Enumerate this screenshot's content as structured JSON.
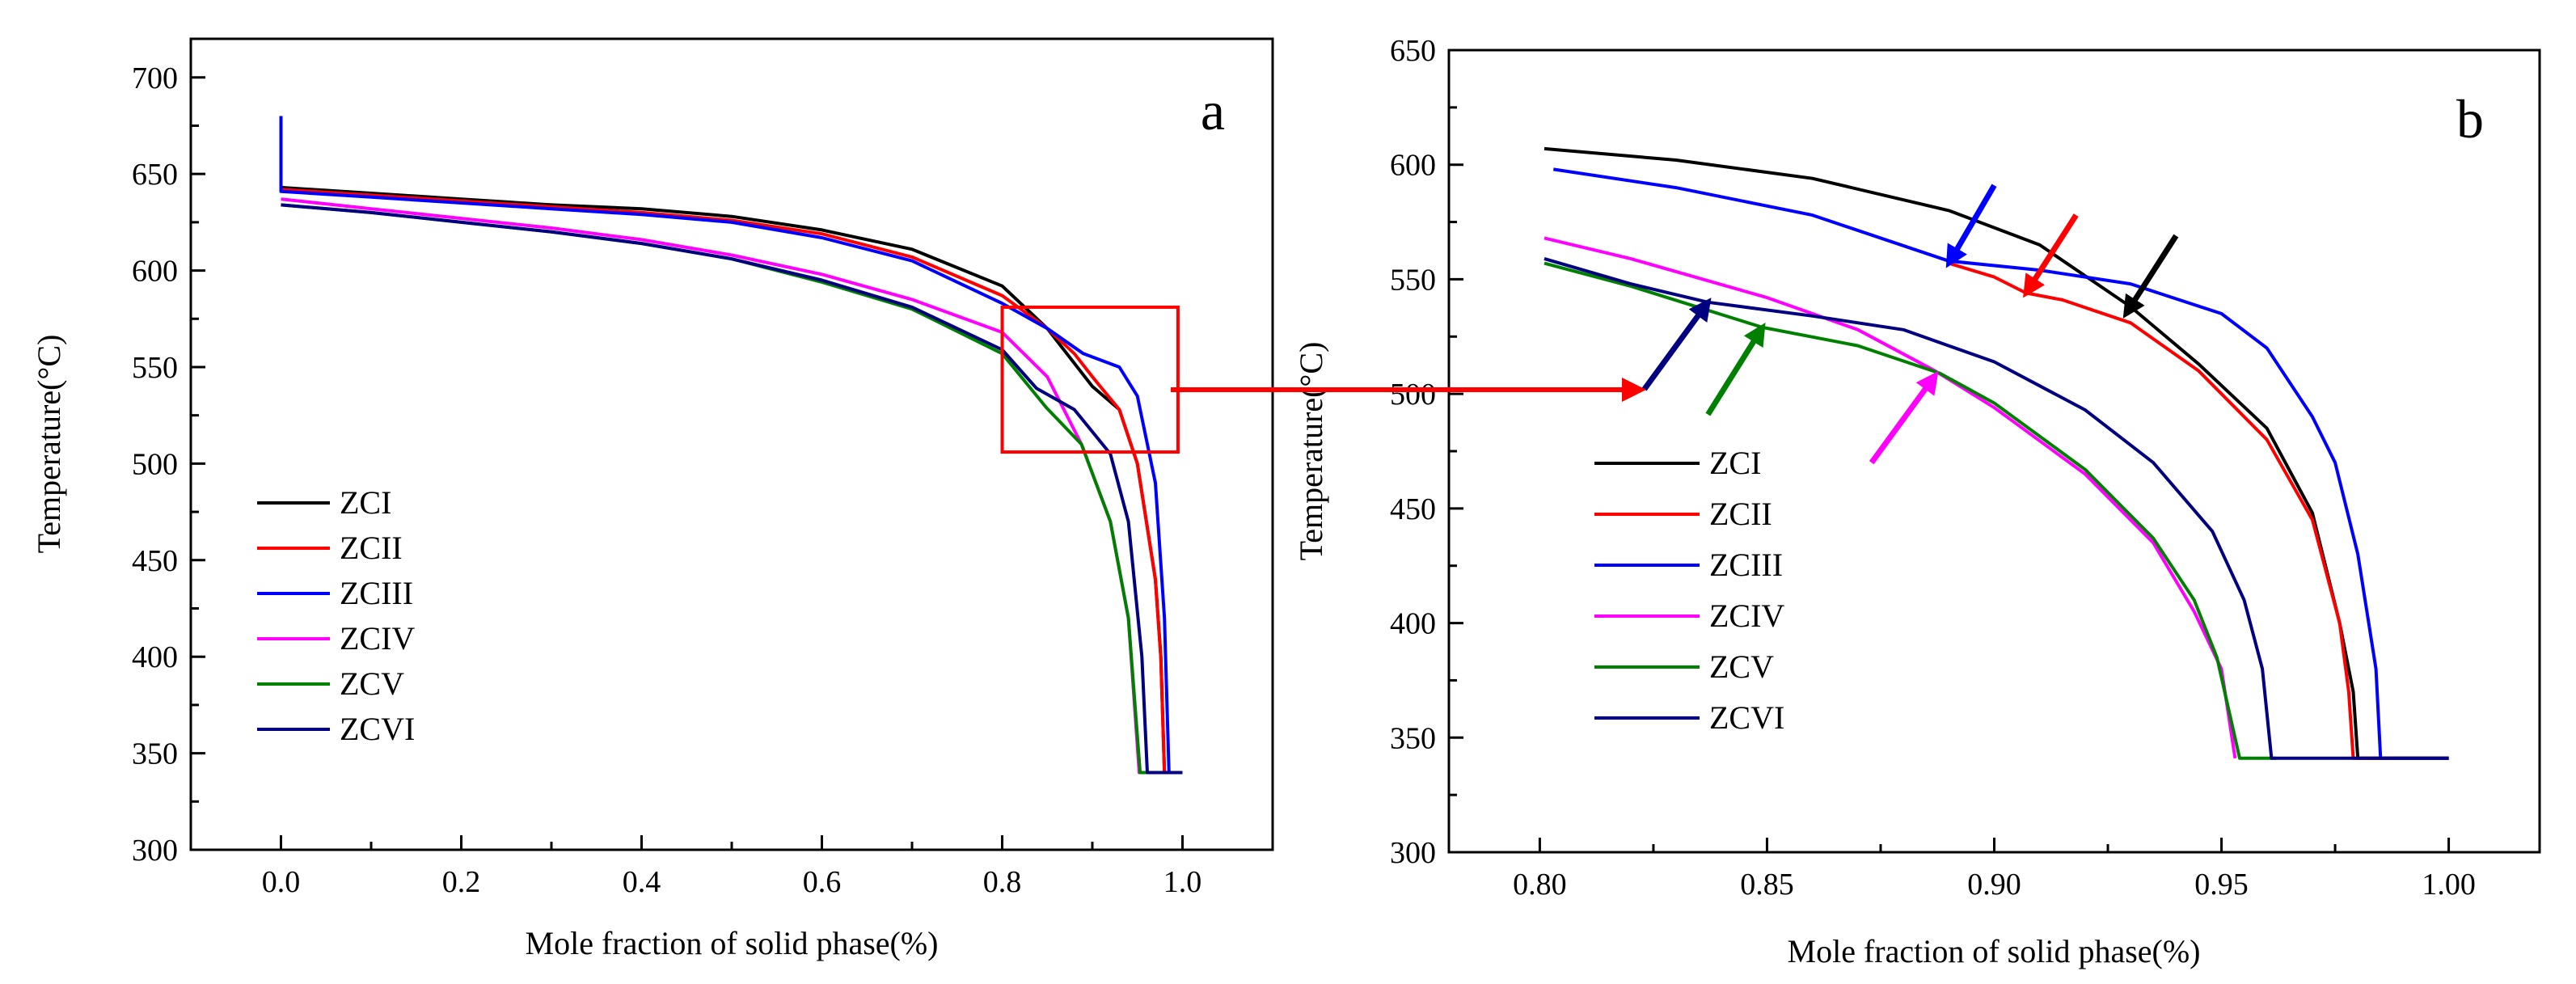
{
  "chart_data": [
    {
      "type": "line",
      "panel_label": "a",
      "xlabel": "Mole fraction of solid phase(%)",
      "ylabel": "Temperature(°C)",
      "xlim": [
        -0.1,
        1.1
      ],
      "ylim": [
        300,
        720
      ],
      "xticks": [
        0.0,
        0.2,
        0.4,
        0.6,
        0.8,
        1.0
      ],
      "xtick_labels": [
        "0.0",
        "0.2",
        "0.4",
        "0.6",
        "0.8",
        "1.0"
      ],
      "yticks": [
        300,
        350,
        400,
        450,
        500,
        550,
        600,
        650,
        700
      ],
      "ytick_labels": [
        "300",
        "350",
        "400",
        "450",
        "500",
        "550",
        "600",
        "650",
        "700"
      ],
      "grid": false,
      "legend_position": "bottom-left",
      "zoom_box": {
        "x": [
          0.8,
          0.995
        ],
        "y": [
          506,
          581
        ],
        "color": "#ff0000"
      },
      "series": [
        {
          "name": "ZCI",
          "color": "#000000",
          "points": [
            [
              0,
              643
            ],
            [
              0.1,
              640
            ],
            [
              0.2,
              637
            ],
            [
              0.3,
              634
            ],
            [
              0.4,
              632
            ],
            [
              0.5,
              628
            ],
            [
              0.6,
              621
            ],
            [
              0.7,
              611
            ],
            [
              0.8,
              592
            ],
            [
              0.85,
              570
            ],
            [
              0.9,
              540
            ],
            [
              0.93,
              528
            ],
            [
              0.95,
              500
            ],
            [
              0.97,
              440
            ],
            [
              0.976,
              400
            ],
            [
              0.98,
              340
            ],
            [
              1.0,
              340
            ]
          ]
        },
        {
          "name": "ZCII",
          "color": "#ff0000",
          "points": [
            [
              0,
              642
            ],
            [
              0.1,
              639
            ],
            [
              0.2,
              636
            ],
            [
              0.3,
              633
            ],
            [
              0.4,
              630
            ],
            [
              0.5,
              626
            ],
            [
              0.6,
              619
            ],
            [
              0.7,
              607
            ],
            [
              0.8,
              587
            ],
            [
              0.85,
              570
            ],
            [
              0.88,
              557
            ],
            [
              0.9,
              545
            ],
            [
              0.907,
              541
            ],
            [
              0.93,
              528
            ],
            [
              0.95,
              500
            ],
            [
              0.97,
              440
            ],
            [
              0.976,
              400
            ],
            [
              0.98,
              340
            ],
            [
              1.0,
              340
            ]
          ]
        },
        {
          "name": "ZCIII",
          "color": "#0000ff",
          "points": [
            [
              0,
              680
            ],
            [
              0,
              641
            ],
            [
              0.1,
              638
            ],
            [
              0.2,
              635
            ],
            [
              0.3,
              632
            ],
            [
              0.4,
              629
            ],
            [
              0.5,
              625
            ],
            [
              0.6,
              617
            ],
            [
              0.7,
              605
            ],
            [
              0.8,
              583
            ],
            [
              0.85,
              570
            ],
            [
              0.89,
              557
            ],
            [
              0.93,
              550
            ],
            [
              0.95,
              535
            ],
            [
              0.97,
              490
            ],
            [
              0.98,
              420
            ],
            [
              0.985,
              340
            ],
            [
              1.0,
              340
            ]
          ]
        },
        {
          "name": "ZCIV",
          "color": "#ff00ff",
          "points": [
            [
              0,
              637
            ],
            [
              0.1,
              632
            ],
            [
              0.2,
              627
            ],
            [
              0.3,
              622
            ],
            [
              0.4,
              616
            ],
            [
              0.5,
              608
            ],
            [
              0.6,
              598
            ],
            [
              0.7,
              585
            ],
            [
              0.8,
              568
            ],
            [
              0.85,
              545
            ],
            [
              0.888,
              510
            ],
            [
              0.92,
              470
            ],
            [
              0.94,
              420
            ],
            [
              0.952,
              340
            ],
            [
              0.96,
              340
            ]
          ]
        },
        {
          "name": "ZCV",
          "color": "#008000",
          "points": [
            [
              0,
              634
            ],
            [
              0.1,
              630
            ],
            [
              0.2,
              625
            ],
            [
              0.3,
              620
            ],
            [
              0.4,
              614
            ],
            [
              0.5,
              606
            ],
            [
              0.6,
              594
            ],
            [
              0.7,
              580
            ],
            [
              0.8,
              557
            ],
            [
              0.849,
              529
            ],
            [
              0.888,
              510
            ],
            [
              0.92,
              470
            ],
            [
              0.94,
              420
            ],
            [
              0.953,
              340
            ],
            [
              0.96,
              340
            ]
          ]
        },
        {
          "name": "ZCVI",
          "color": "#000080",
          "points": [
            [
              0,
              634
            ],
            [
              0.1,
              630
            ],
            [
              0.2,
              625
            ],
            [
              0.3,
              620
            ],
            [
              0.4,
              614
            ],
            [
              0.5,
              606
            ],
            [
              0.6,
              595
            ],
            [
              0.7,
              581
            ],
            [
              0.8,
              559
            ],
            [
              0.838,
              539
            ],
            [
              0.88,
              528
            ],
            [
              0.92,
              505
            ],
            [
              0.94,
              470
            ],
            [
              0.955,
              400
            ],
            [
              0.961,
              340
            ],
            [
              1.0,
              340
            ]
          ]
        }
      ]
    },
    {
      "type": "line",
      "panel_label": "b",
      "xlabel": "Mole fraction of solid phase(%)",
      "ylabel": "Temperature(°C)",
      "xlim": [
        0.78,
        1.02
      ],
      "ylim": [
        300,
        650
      ],
      "xticks": [
        0.8,
        0.85,
        0.9,
        0.95,
        1.0
      ],
      "xtick_labels": [
        "0.80",
        "0.85",
        "0.90",
        "0.95",
        "1.00"
      ],
      "yticks": [
        300,
        350,
        400,
        450,
        500,
        550,
        600,
        650
      ],
      "ytick_labels": [
        "300",
        "350",
        "400",
        "450",
        "500",
        "550",
        "600",
        "650"
      ],
      "grid": false,
      "legend_position": "middle-left",
      "arrows": [
        {
          "color": "#0000ff",
          "from": [
            0.9,
            591
          ],
          "to": [
            0.89,
            557
          ]
        },
        {
          "color": "#ff0000",
          "from": [
            0.918,
            578
          ],
          "to": [
            0.907,
            544
          ]
        },
        {
          "color": "#000000",
          "from": [
            0.94,
            569
          ],
          "to": [
            0.929,
            535
          ]
        },
        {
          "color": "#ff00ff",
          "from": [
            0.873,
            470
          ],
          "to": [
            0.887,
            508
          ]
        },
        {
          "color": "#008000",
          "from": [
            0.837,
            491
          ],
          "to": [
            0.849,
            529
          ]
        },
        {
          "color": "#000080",
          "from": [
            0.823,
            502
          ],
          "to": [
            0.837,
            540
          ]
        }
      ],
      "series": [
        {
          "name": "ZCI",
          "color": "#000000",
          "points": [
            [
              0.801,
              607
            ],
            [
              0.83,
              602
            ],
            [
              0.86,
              594
            ],
            [
              0.89,
              580
            ],
            [
              0.91,
              565
            ],
            [
              0.93,
              538
            ],
            [
              0.945,
              513
            ],
            [
              0.96,
              485
            ],
            [
              0.97,
              448
            ],
            [
              0.976,
              400
            ],
            [
              0.979,
              370
            ],
            [
              0.98,
              341
            ],
            [
              1.0,
              341
            ]
          ]
        },
        {
          "name": "ZCII",
          "color": "#ff0000",
          "points": [
            [
              0.89,
              557
            ],
            [
              0.9,
              551
            ],
            [
              0.907,
              544
            ],
            [
              0.915,
              541
            ],
            [
              0.93,
              531
            ],
            [
              0.945,
              510
            ],
            [
              0.96,
              480
            ],
            [
              0.97,
              445
            ],
            [
              0.976,
              400
            ],
            [
              0.978,
              370
            ],
            [
              0.979,
              341
            ],
            [
              1.0,
              341
            ]
          ]
        },
        {
          "name": "ZCIII",
          "color": "#0000ff",
          "points": [
            [
              0.803,
              598
            ],
            [
              0.83,
              590
            ],
            [
              0.86,
              578
            ],
            [
              0.89,
              558
            ],
            [
              0.91,
              554
            ],
            [
              0.93,
              548
            ],
            [
              0.95,
              535
            ],
            [
              0.96,
              520
            ],
            [
              0.97,
              490
            ],
            [
              0.975,
              470
            ],
            [
              0.98,
              430
            ],
            [
              0.984,
              380
            ],
            [
              0.985,
              341
            ],
            [
              1.0,
              341
            ]
          ]
        },
        {
          "name": "ZCIV",
          "color": "#ff00ff",
          "points": [
            [
              0.801,
              568
            ],
            [
              0.82,
              559
            ],
            [
              0.85,
              542
            ],
            [
              0.87,
              528
            ],
            [
              0.887,
              510
            ],
            [
              0.9,
              494
            ],
            [
              0.92,
              465
            ],
            [
              0.935,
              435
            ],
            [
              0.944,
              405
            ],
            [
              0.95,
              380
            ],
            [
              0.953,
              341
            ]
          ]
        },
        {
          "name": "ZCV",
          "color": "#008000",
          "points": [
            [
              0.801,
              557
            ],
            [
              0.82,
              547
            ],
            [
              0.849,
              529
            ],
            [
              0.87,
              521
            ],
            [
              0.888,
              509
            ],
            [
              0.9,
              496
            ],
            [
              0.92,
              467
            ],
            [
              0.935,
              437
            ],
            [
              0.944,
              410
            ],
            [
              0.949,
              385
            ],
            [
              0.954,
              341
            ],
            [
              0.962,
              341
            ]
          ]
        },
        {
          "name": "ZCVI",
          "color": "#000080",
          "points": [
            [
              0.801,
              559
            ],
            [
              0.82,
              548
            ],
            [
              0.837,
              540
            ],
            [
              0.86,
              534
            ],
            [
              0.88,
              528
            ],
            [
              0.9,
              514
            ],
            [
              0.92,
              493
            ],
            [
              0.935,
              470
            ],
            [
              0.948,
              440
            ],
            [
              0.955,
              410
            ],
            [
              0.959,
              380
            ],
            [
              0.961,
              341
            ],
            [
              1.0,
              341
            ]
          ]
        }
      ]
    }
  ]
}
